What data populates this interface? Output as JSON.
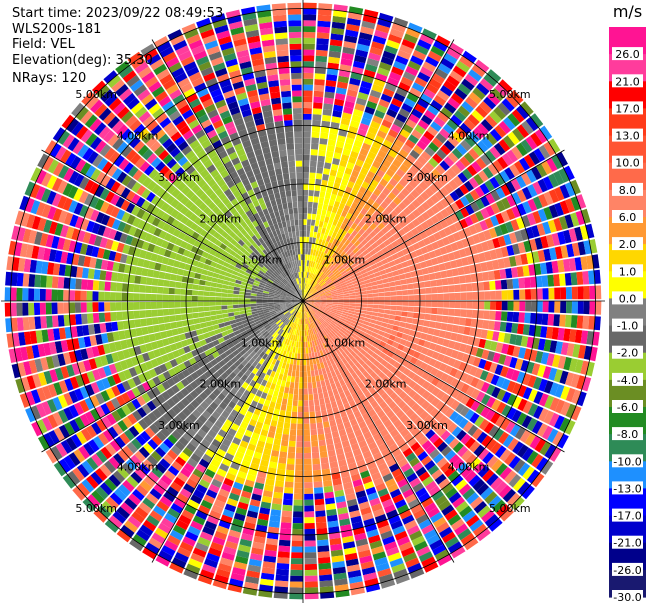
{
  "info": {
    "start_time": "Start time: 2023/09/22 08:49:53",
    "instrument": "WLS200s-181",
    "field": "Field: VEL",
    "elevation": "Elevation(deg): 35.30",
    "nrays": "NRays: 120"
  },
  "chart_data": {
    "type": "heatmap",
    "subtype": "ppi-polar",
    "field": "VEL",
    "units": "m/s",
    "rays": 120,
    "range_rings_km": [
      1.0,
      2.0,
      3.0,
      4.0,
      5.0
    ],
    "ring_labels": [
      "1.00km",
      "2.00km",
      "3.00km",
      "4.00km",
      "5.00km"
    ],
    "max_range_km": 5.1,
    "colorbar": {
      "title": "m/s",
      "ticks": [
        "26.0",
        "21.0",
        "17.0",
        "13.0",
        "10.0",
        "8.0",
        "6.0",
        "2.0",
        "1.0",
        "0.0",
        "-1.0",
        "-2.0",
        "-4.0",
        "-6.0",
        "-8.0",
        "-10.0",
        "-13.0",
        "-17.0",
        "-21.0",
        "-26.0",
        "-30.0"
      ],
      "colors": [
        "#ff1493",
        "#ff3c9c",
        "#ff0000",
        "#ff3b1a",
        "#ff5533",
        "#ff6a4a",
        "#ff8466",
        "#ff9933",
        "#ffd700",
        "#ffff00",
        "#808080",
        "#686868",
        "#9acd32",
        "#6b8e23",
        "#228b22",
        "#2e8b57",
        "#1e90ff",
        "#0000ff",
        "#0000cd",
        "#00008b",
        "#191970"
      ]
    }
  }
}
